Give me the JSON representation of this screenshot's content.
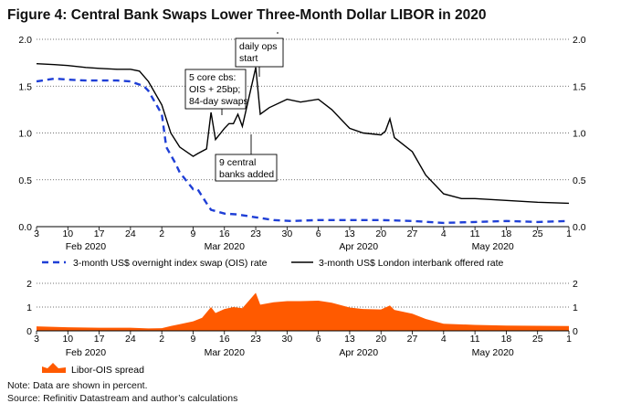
{
  "title": "Figure 4: Central Bank Swaps Lower Three-Month Dollar LIBOR in 2020",
  "notes": {
    "data": "Note: Data are shown in percent.",
    "source": "Source: Refinitiv Datastream and author’s calculations"
  },
  "colors": {
    "ois": "#1f3fd6",
    "libor": "#000000",
    "spread": "#ff5a00"
  },
  "chart_data": [
    {
      "type": "line",
      "panel": "top",
      "ylim": [
        0,
        2.0
      ],
      "y_ticks_left": [
        "0.0",
        "0.5",
        "1.0",
        "1.5",
        "2.0"
      ],
      "y_ticks_right": [
        "0.0",
        "0.5",
        "1.0",
        "1.5",
        "2.0"
      ],
      "x_ticks": [
        "3",
        "10",
        "17",
        "24",
        "2",
        "9",
        "16",
        "23",
        "30",
        "6",
        "13",
        "20",
        "27",
        "4",
        "11",
        "18",
        "25",
        "1"
      ],
      "x_tick_dates": [
        "2020-02-03",
        "2020-02-10",
        "2020-02-17",
        "2020-02-24",
        "2020-03-02",
        "2020-03-09",
        "2020-03-16",
        "2020-03-23",
        "2020-03-30",
        "2020-04-06",
        "2020-04-13",
        "2020-04-20",
        "2020-04-27",
        "2020-05-04",
        "2020-05-11",
        "2020-05-18",
        "2020-05-25",
        "2020-06-01"
      ],
      "month_labels": [
        {
          "label": "Feb 2020",
          "date": "2020-02-14"
        },
        {
          "label": "Mar 2020",
          "date": "2020-03-16"
        },
        {
          "label": "Apr 2020",
          "date": "2020-04-15"
        },
        {
          "label": "May 2020",
          "date": "2020-05-15"
        }
      ],
      "grid": "dotted horizontal",
      "legend_position": "bottom",
      "series": [
        {
          "name": "3-month US$ overnight index swap (OIS) rate",
          "style": "dashed",
          "points": [
            [
              "2020-02-03",
              1.55
            ],
            [
              "2020-02-07",
              1.58
            ],
            [
              "2020-02-10",
              1.57
            ],
            [
              "2020-02-14",
              1.56
            ],
            [
              "2020-02-17",
              1.56
            ],
            [
              "2020-02-21",
              1.56
            ],
            [
              "2020-02-24",
              1.55
            ],
            [
              "2020-02-27",
              1.5
            ],
            [
              "2020-02-28",
              1.45
            ],
            [
              "2020-03-02",
              1.2
            ],
            [
              "2020-03-03",
              0.85
            ],
            [
              "2020-03-05",
              0.68
            ],
            [
              "2020-03-06",
              0.58
            ],
            [
              "2020-03-09",
              0.4
            ],
            [
              "2020-03-10",
              0.4
            ],
            [
              "2020-03-12",
              0.25
            ],
            [
              "2020-03-13",
              0.18
            ],
            [
              "2020-03-16",
              0.14
            ],
            [
              "2020-03-19",
              0.13
            ],
            [
              "2020-03-23",
              0.1
            ],
            [
              "2020-03-27",
              0.07
            ],
            [
              "2020-03-31",
              0.06
            ],
            [
              "2020-04-06",
              0.07
            ],
            [
              "2020-04-13",
              0.07
            ],
            [
              "2020-04-20",
              0.07
            ],
            [
              "2020-04-27",
              0.06
            ],
            [
              "2020-05-04",
              0.04
            ],
            [
              "2020-05-11",
              0.05
            ],
            [
              "2020-05-18",
              0.06
            ],
            [
              "2020-05-25",
              0.05
            ],
            [
              "2020-06-01",
              0.06
            ]
          ]
        },
        {
          "name": "3-month US$ London interbank offered rate",
          "style": "solid",
          "points": [
            [
              "2020-02-03",
              1.74
            ],
            [
              "2020-02-07",
              1.73
            ],
            [
              "2020-02-10",
              1.72
            ],
            [
              "2020-02-14",
              1.7
            ],
            [
              "2020-02-17",
              1.69
            ],
            [
              "2020-02-21",
              1.68
            ],
            [
              "2020-02-24",
              1.68
            ],
            [
              "2020-02-26",
              1.66
            ],
            [
              "2020-02-28",
              1.55
            ],
            [
              "2020-03-02",
              1.3
            ],
            [
              "2020-03-04",
              1.0
            ],
            [
              "2020-03-06",
              0.85
            ],
            [
              "2020-03-09",
              0.75
            ],
            [
              "2020-03-10",
              0.78
            ],
            [
              "2020-03-12",
              0.83
            ],
            [
              "2020-03-13",
              1.22
            ],
            [
              "2020-03-14",
              0.93
            ],
            [
              "2020-03-16",
              1.05
            ],
            [
              "2020-03-17",
              1.1
            ],
            [
              "2020-03-18",
              1.1
            ],
            [
              "2020-03-19",
              1.2
            ],
            [
              "2020-03-20",
              1.07
            ],
            [
              "2020-03-23",
              1.7
            ],
            [
              "2020-03-24",
              1.2
            ],
            [
              "2020-03-26",
              1.27
            ],
            [
              "2020-03-30",
              1.36
            ],
            [
              "2020-04-02",
              1.33
            ],
            [
              "2020-04-06",
              1.36
            ],
            [
              "2020-04-09",
              1.25
            ],
            [
              "2020-04-13",
              1.05
            ],
            [
              "2020-04-16",
              1.0
            ],
            [
              "2020-04-20",
              0.98
            ],
            [
              "2020-04-21",
              1.02
            ],
            [
              "2020-04-22",
              1.15
            ],
            [
              "2020-04-23",
              0.95
            ],
            [
              "2020-04-27",
              0.8
            ],
            [
              "2020-04-30",
              0.55
            ],
            [
              "2020-05-04",
              0.35
            ],
            [
              "2020-05-08",
              0.3
            ],
            [
              "2020-05-11",
              0.3
            ],
            [
              "2020-05-18",
              0.28
            ],
            [
              "2020-05-25",
              0.26
            ],
            [
              "2020-06-01",
              0.25
            ]
          ]
        }
      ],
      "annotations": [
        {
          "text": [
            "daily ops",
            "start"
          ],
          "date": "2020-03-23"
        },
        {
          "text": [
            "5 core cbs:",
            "OIS + 25bp;",
            "84-day swaps"
          ],
          "date": "2020-03-13"
        },
        {
          "text": [
            "9 central",
            "banks added"
          ],
          "date": "2020-03-19"
        }
      ]
    },
    {
      "type": "area",
      "panel": "bottom",
      "ylim": [
        0,
        2
      ],
      "y_ticks_left": [
        "0",
        "1",
        "2"
      ],
      "y_ticks_right": [
        "0",
        "1",
        "2"
      ],
      "x_ticks": [
        "3",
        "10",
        "17",
        "24",
        "2",
        "9",
        "16",
        "23",
        "30",
        "6",
        "13",
        "20",
        "27",
        "4",
        "11",
        "18",
        "25",
        "1"
      ],
      "month_labels": [
        "Feb 2020",
        "Mar 2020",
        "Apr 2020",
        "May 2020"
      ],
      "grid": "dotted horizontal",
      "legend_position": "bottom-left",
      "series": [
        {
          "name": "Libor-OIS spread",
          "points": [
            [
              "2020-02-03",
              0.19
            ],
            [
              "2020-02-10",
              0.15
            ],
            [
              "2020-02-17",
              0.13
            ],
            [
              "2020-02-24",
              0.13
            ],
            [
              "2020-02-28",
              0.1
            ],
            [
              "2020-03-02",
              0.11
            ],
            [
              "2020-03-04",
              0.2
            ],
            [
              "2020-03-06",
              0.28
            ],
            [
              "2020-03-09",
              0.4
            ],
            [
              "2020-03-11",
              0.55
            ],
            [
              "2020-03-13",
              1.0
            ],
            [
              "2020-03-14",
              0.75
            ],
            [
              "2020-03-16",
              0.92
            ],
            [
              "2020-03-18",
              1.0
            ],
            [
              "2020-03-20",
              0.95
            ],
            [
              "2020-03-23",
              1.6
            ],
            [
              "2020-03-24",
              1.1
            ],
            [
              "2020-03-27",
              1.2
            ],
            [
              "2020-03-30",
              1.25
            ],
            [
              "2020-04-02",
              1.25
            ],
            [
              "2020-04-06",
              1.27
            ],
            [
              "2020-04-09",
              1.18
            ],
            [
              "2020-04-13",
              0.98
            ],
            [
              "2020-04-16",
              0.92
            ],
            [
              "2020-04-20",
              0.9
            ],
            [
              "2020-04-22",
              1.07
            ],
            [
              "2020-04-23",
              0.88
            ],
            [
              "2020-04-27",
              0.72
            ],
            [
              "2020-04-30",
              0.5
            ],
            [
              "2020-05-04",
              0.3
            ],
            [
              "2020-05-11",
              0.25
            ],
            [
              "2020-05-18",
              0.22
            ],
            [
              "2020-05-25",
              0.21
            ],
            [
              "2020-06-01",
              0.2
            ]
          ]
        }
      ]
    }
  ]
}
